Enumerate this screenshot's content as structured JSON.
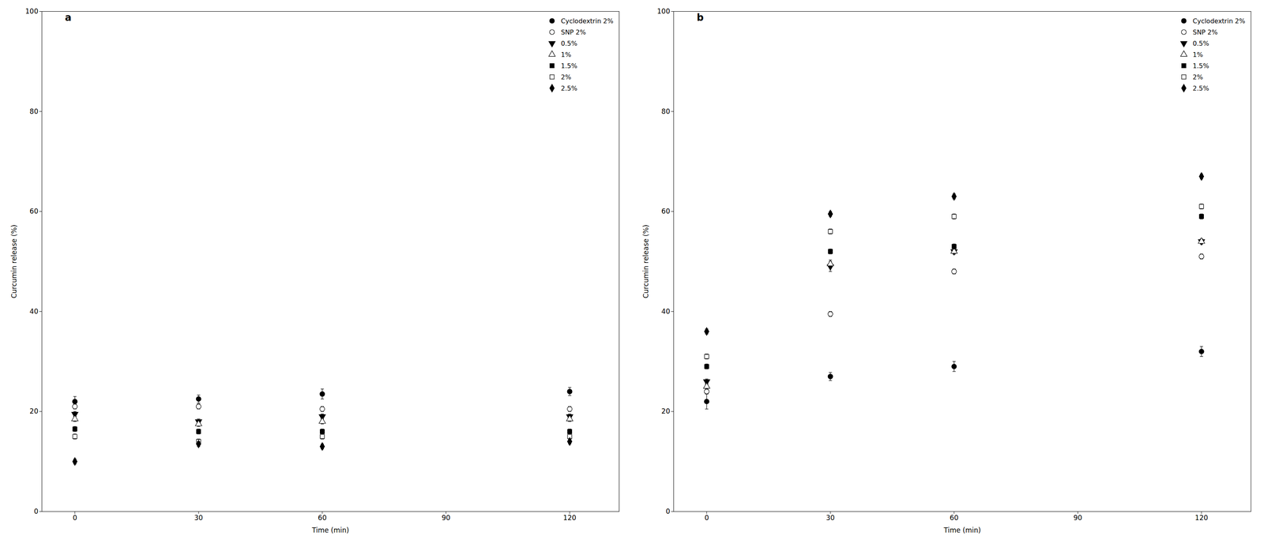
{
  "chart_data": [
    {
      "type": "scatter",
      "title": "a",
      "x_label": "Time (min)",
      "y_label": "Curcumin release (%)",
      "xlim": [
        -8,
        132
      ],
      "ylim": [
        0,
        100
      ],
      "xticks": [
        0,
        30,
        60,
        90,
        120
      ],
      "yticks": [
        0,
        20,
        40,
        60,
        80,
        100
      ],
      "legend": "upper right",
      "series": [
        {
          "name": "Cyclodextrin 2%",
          "color": "black",
          "marker": "circle",
          "x": [
            0,
            30,
            60,
            120
          ],
          "values": [
            22.0,
            22.5,
            23.5,
            24.0
          ],
          "yerr": [
            1.0,
            0.8,
            1.0,
            0.8
          ]
        },
        {
          "name": "SNP 2%",
          "color": "black",
          "marker": "circle-open",
          "x": [
            0,
            30,
            60,
            120
          ],
          "values": [
            21.0,
            21.0,
            20.5,
            20.5
          ],
          "yerr": [
            0.5,
            0.5,
            0.5,
            0.5
          ]
        },
        {
          "name": "0.5%",
          "color": "black",
          "marker": "triangle-down",
          "x": [
            0,
            30,
            60,
            120
          ],
          "values": [
            19.5,
            18.0,
            19.0,
            19.0
          ],
          "yerr": [
            0.5,
            0.5,
            0.5,
            0.5
          ]
        },
        {
          "name": "1%",
          "color": "black",
          "marker": "triangle-up-open",
          "x": [
            0,
            30,
            60,
            120
          ],
          "values": [
            18.5,
            17.5,
            18.0,
            18.5
          ],
          "yerr": [
            0.5,
            0.5,
            0.5,
            0.5
          ]
        },
        {
          "name": "1.5%",
          "color": "black",
          "marker": "square",
          "x": [
            0,
            30,
            60,
            120
          ],
          "values": [
            16.5,
            16.0,
            16.0,
            16.0
          ],
          "yerr": [
            0.5,
            0.5,
            0.5,
            0.5
          ]
        },
        {
          "name": "2%",
          "color": "black",
          "marker": "square-open",
          "x": [
            0,
            30,
            60,
            120
          ],
          "values": [
            15.0,
            14.0,
            15.0,
            15.0
          ],
          "yerr": [
            0.5,
            0.5,
            0.5,
            0.5
          ]
        },
        {
          "name": "2.5%",
          "color": "black",
          "marker": "diamond",
          "x": [
            0,
            30,
            60,
            120
          ],
          "values": [
            10.0,
            13.5,
            13.0,
            14.0
          ],
          "yerr": [
            0.5,
            0.5,
            0.5,
            0.5
          ]
        }
      ]
    },
    {
      "type": "scatter",
      "title": "b",
      "x_label": "Time (min)",
      "y_label": "Curcumin release (%)",
      "xlim": [
        -8,
        132
      ],
      "ylim": [
        0,
        100
      ],
      "xticks": [
        0,
        30,
        60,
        90,
        120
      ],
      "yticks": [
        0,
        20,
        40,
        60,
        80,
        100
      ],
      "legend": "upper right",
      "series": [
        {
          "name": "Cyclodextrin 2%",
          "color": "black",
          "marker": "circle",
          "x": [
            0,
            30,
            60,
            120
          ],
          "values": [
            22.0,
            27.0,
            29.0,
            32.0
          ],
          "yerr": [
            1.5,
            0.8,
            1.0,
            1.0
          ]
        },
        {
          "name": "SNP 2%",
          "color": "black",
          "marker": "circle-open",
          "x": [
            0,
            30,
            60,
            120
          ],
          "values": [
            24.0,
            39.5,
            48.0,
            51.0
          ],
          "yerr": [
            0.5,
            0.5,
            0.5,
            0.5
          ]
        },
        {
          "name": "0.5%",
          "color": "black",
          "marker": "triangle-down",
          "x": [
            0,
            30,
            60,
            120
          ],
          "values": [
            26.0,
            49.0,
            52.0,
            54.0
          ],
          "yerr": [
            0.5,
            1.0,
            0.5,
            0.5
          ]
        },
        {
          "name": "1%",
          "color": "black",
          "marker": "triangle-up-open",
          "x": [
            0,
            30,
            60,
            120
          ],
          "values": [
            25.0,
            49.5,
            52.0,
            54.0
          ],
          "yerr": [
            0.5,
            0.8,
            0.5,
            0.5
          ]
        },
        {
          "name": "1.5%",
          "color": "black",
          "marker": "square",
          "x": [
            0,
            30,
            60,
            120
          ],
          "values": [
            29.0,
            52.0,
            53.0,
            59.0
          ],
          "yerr": [
            0.5,
            0.5,
            0.5,
            0.5
          ]
        },
        {
          "name": "2%",
          "color": "black",
          "marker": "square-open",
          "x": [
            0,
            30,
            60,
            120
          ],
          "values": [
            31.0,
            56.0,
            59.0,
            61.0
          ],
          "yerr": [
            0.5,
            0.5,
            0.5,
            0.5
          ]
        },
        {
          "name": "2.5%",
          "color": "black",
          "marker": "diamond",
          "x": [
            0,
            30,
            60,
            120
          ],
          "values": [
            36.0,
            59.5,
            63.0,
            67.0
          ],
          "yerr": [
            0.5,
            0.5,
            0.5,
            0.5
          ]
        }
      ]
    }
  ]
}
